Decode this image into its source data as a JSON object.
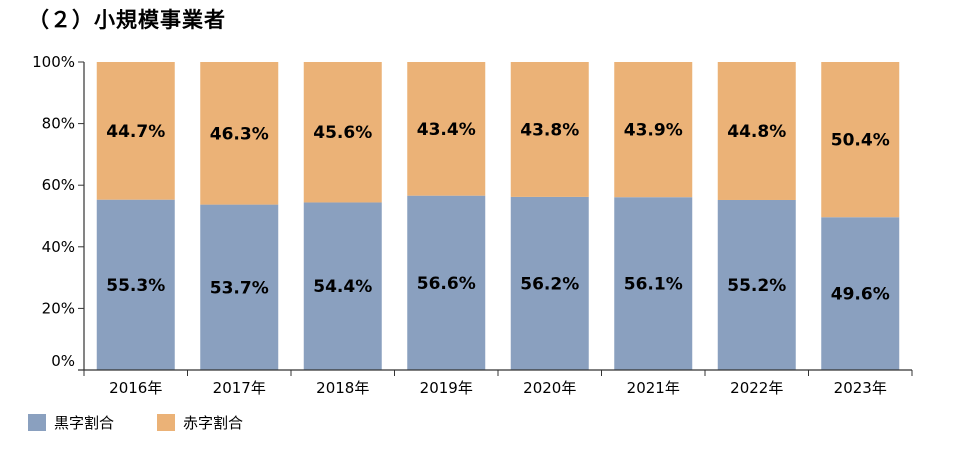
{
  "title": "（２）小規模事業者",
  "chart_data": {
    "type": "bar",
    "stacked": true,
    "categories": [
      "2016年",
      "2017年",
      "2018年",
      "2019年",
      "2020年",
      "2021年",
      "2022年",
      "2023年"
    ],
    "series": [
      {
        "name": "黒字割合",
        "color": "#8aa0bf",
        "values": [
          55.3,
          53.7,
          54.4,
          56.6,
          56.2,
          56.1,
          55.2,
          49.6
        ],
        "labels": [
          "55.3%",
          "53.7%",
          "54.4%",
          "56.6%",
          "56.2%",
          "56.1%",
          "55.2%",
          "49.6%"
        ]
      },
      {
        "name": "赤字割合",
        "color": "#ebb277",
        "values": [
          44.7,
          46.3,
          45.6,
          43.4,
          43.8,
          43.9,
          44.8,
          50.4
        ],
        "labels": [
          "44.7%",
          "46.3%",
          "45.6%",
          "43.4%",
          "43.8%",
          "43.9%",
          "44.8%",
          "50.4%"
        ]
      }
    ],
    "ylim": [
      0,
      100
    ],
    "yticks": [
      "0%",
      "20%",
      "40%",
      "60%",
      "80%",
      "100%"
    ],
    "ytick_values": [
      0,
      20,
      40,
      60,
      80,
      100
    ],
    "grid": false,
    "legend_position": "bottom-left"
  }
}
